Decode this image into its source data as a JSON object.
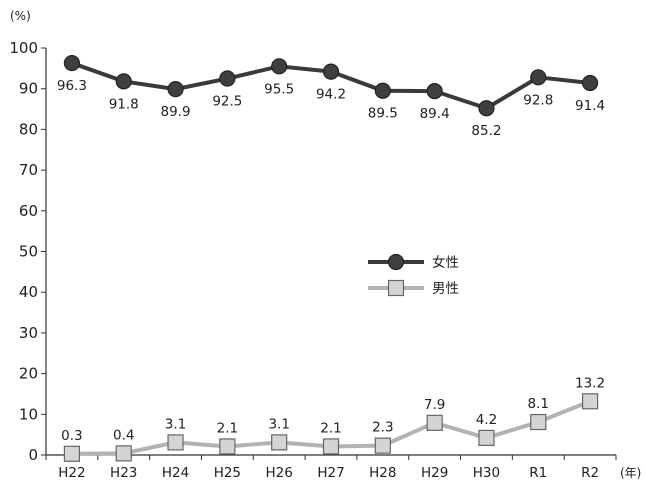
{
  "chart_data": {
    "type": "line",
    "y_unit": "(%)",
    "x_unit": "(年)",
    "categories": [
      "H22",
      "H23",
      "H24",
      "H25",
      "H26",
      "H27",
      "H28",
      "H29",
      "H30",
      "R1",
      "R2"
    ],
    "ylim": [
      0,
      100
    ],
    "yticks": [
      0,
      10,
      20,
      30,
      40,
      50,
      60,
      70,
      80,
      90,
      100
    ],
    "grid": false,
    "legend_position": "center-right",
    "series": [
      {
        "name": "女性",
        "marker": "circle",
        "color": "#3a3a3a",
        "values": [
          96.3,
          91.8,
          89.9,
          92.5,
          95.5,
          94.2,
          89.5,
          89.4,
          85.2,
          92.8,
          91.4
        ],
        "labels": [
          "96.3",
          "91.8",
          "89.9",
          "92.5",
          "95.5",
          "94.2",
          "89.5",
          "89.4",
          "85.2",
          "92.8",
          "91.4"
        ]
      },
      {
        "name": "男性",
        "marker": "square",
        "color": "#b3b3b3",
        "values": [
          0.3,
          0.4,
          3.1,
          2.1,
          3.1,
          2.1,
          2.3,
          7.9,
          4.2,
          8.1,
          13.2
        ],
        "labels": [
          "0.3",
          "0.4",
          "3.1",
          "2.1",
          "3.1",
          "2.1",
          "2.3",
          "7.9",
          "4.2",
          "8.1",
          "13.2"
        ]
      }
    ]
  }
}
